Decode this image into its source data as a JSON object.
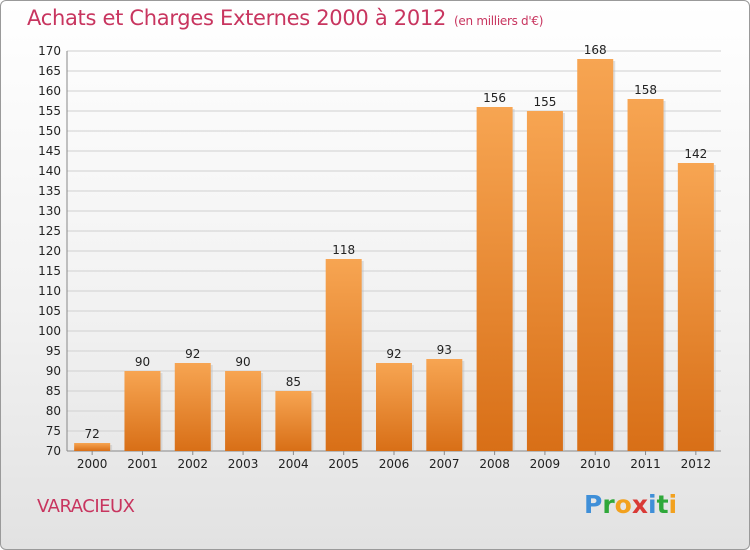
{
  "header": {
    "title": "Achats et Charges Externes 2000 à 2012",
    "unit": "(en milliers d'€)"
  },
  "footer": {
    "commune": "VARACIEUX",
    "logo_letters": [
      "P",
      "r",
      "o",
      "x",
      "i",
      "t",
      "i"
    ]
  },
  "colors": {
    "title": "#c8355f",
    "bar_top": "#f7a552",
    "bar_bottom": "#d86f17",
    "logo": [
      "#3f8fd8",
      "#2fa83a",
      "#f2a11e",
      "#d93a36",
      "#3f8fd8",
      "#2fa83a",
      "#f2a11e"
    ]
  },
  "chart_data": {
    "type": "bar",
    "title": "Achats et Charges Externes 2000 à 2012",
    "subtitle": "(en milliers d'€)",
    "xlabel": "",
    "ylabel": "",
    "categories": [
      "2000",
      "2001",
      "2002",
      "2003",
      "2004",
      "2005",
      "2006",
      "2007",
      "2008",
      "2009",
      "2010",
      "2011",
      "2012"
    ],
    "values": [
      72,
      90,
      92,
      90,
      85,
      118,
      92,
      93,
      156,
      155,
      168,
      158,
      142
    ],
    "ylim": [
      70,
      170
    ],
    "yticks": [
      70,
      75,
      80,
      85,
      90,
      95,
      100,
      105,
      110,
      115,
      120,
      125,
      130,
      135,
      140,
      145,
      150,
      155,
      160,
      165,
      170
    ],
    "grid": true,
    "legend": "none"
  }
}
